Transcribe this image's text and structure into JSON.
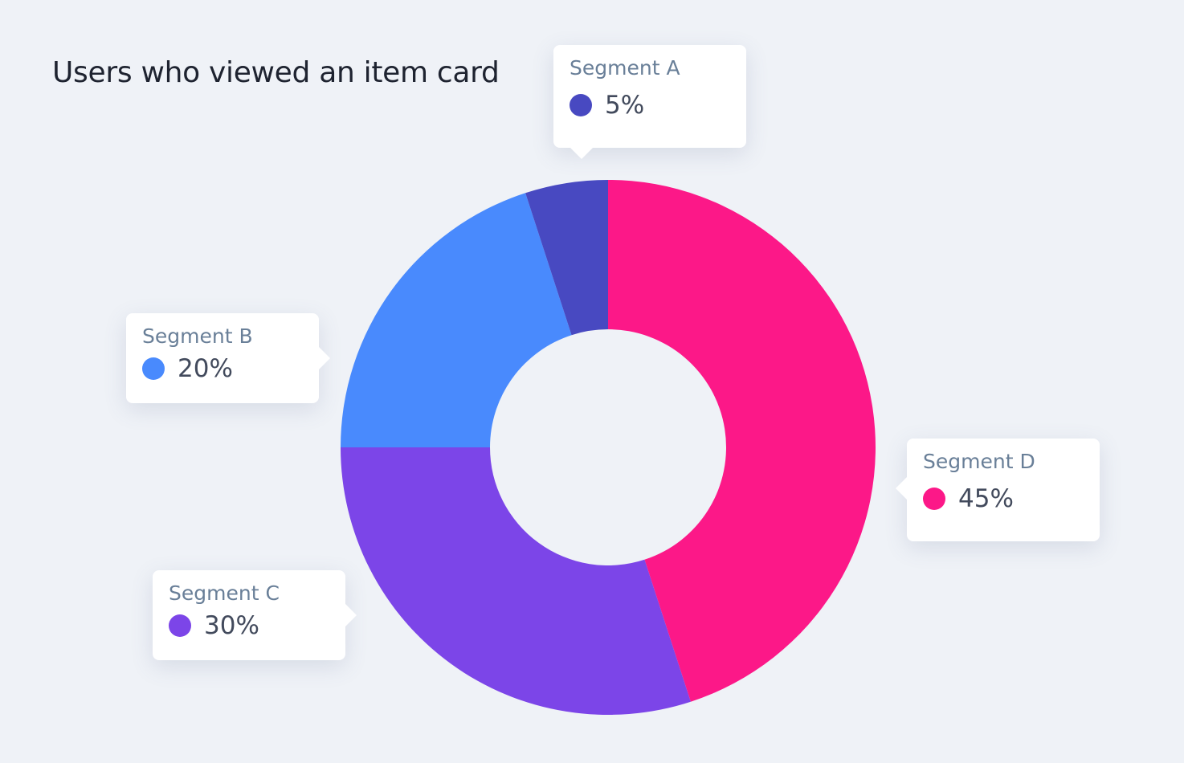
{
  "chart_data": {
    "type": "pie",
    "variant": "donut",
    "title": "Users who viewed an item card",
    "unit": "%",
    "segments": [
      {
        "name": "Segment D",
        "value": 45,
        "label": "45%",
        "color": "#fc1888"
      },
      {
        "name": "Segment C",
        "value": 30,
        "label": "30%",
        "color": "#7c45e8"
      },
      {
        "name": "Segment B",
        "value": 20,
        "label": "20%",
        "color": "#498afd"
      },
      {
        "name": "Segment A",
        "value": 5,
        "label": "5%",
        "color": "#4849c1"
      }
    ]
  }
}
